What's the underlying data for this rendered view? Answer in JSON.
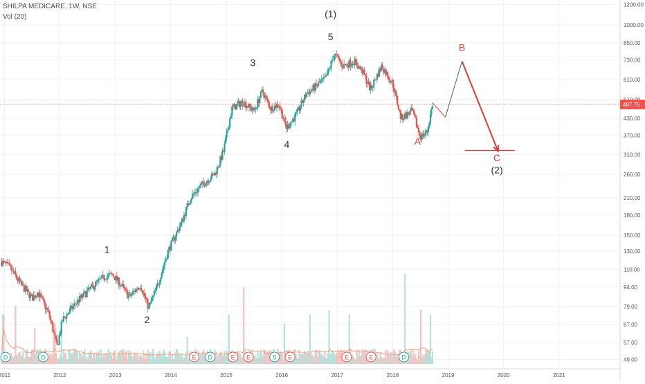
{
  "header": {
    "symbol_line": "SHILPA MEDICARE, 1W, NSE",
    "volume_label": "Vol (20)"
  },
  "price_badge": "487.75",
  "colors": {
    "up": "#26a69a",
    "down": "#ef5350",
    "vol_up": "#b7e1db",
    "vol_down": "#f6c3c2",
    "vol_ma": "#f4a582",
    "annotation_red": "#e53935",
    "annotation_green": "#2e7d32",
    "last_price_line": "#ef5350"
  },
  "chart_data": {
    "type": "candlestick",
    "timeframe": "1W",
    "y_scale": "log",
    "ylim": [
      45,
      1220
    ],
    "xlim": [
      2010.92,
      2022.1
    ],
    "y_ticks": [
      1200,
      1000,
      850,
      730,
      610,
      510,
      430,
      370,
      310,
      260,
      210,
      180,
      150,
      130,
      110,
      94,
      79,
      67,
      57,
      49
    ],
    "y_tick_labels": [
      "1200.00",
      "1000.00",
      "850.00",
      "730.00",
      "610.00",
      "510.00",
      "430.00",
      "370.00",
      "310.00",
      "260.00",
      "210.00",
      "180.00",
      "150.00",
      "130.00",
      "110.00",
      "94.00",
      "79.00",
      "67.00",
      "57.00",
      "49.00"
    ],
    "x_ticks": [
      2011,
      2012,
      2013,
      2014,
      2015,
      2016,
      2017,
      2018,
      2019,
      2020,
      2021
    ],
    "x_tick_labels": [
      "2011",
      "2012",
      "2013",
      "2014",
      "2015",
      "2016",
      "2017",
      "2018",
      "2019",
      "2020",
      "2021"
    ],
    "last_price": 487.75,
    "price_path": [
      {
        "t": 2010.95,
        "p": 118
      },
      {
        "t": 2011.1,
        "p": 112
      },
      {
        "t": 2011.3,
        "p": 96
      },
      {
        "t": 2011.5,
        "p": 85
      },
      {
        "t": 2011.6,
        "p": 90
      },
      {
        "t": 2011.8,
        "p": 74
      },
      {
        "t": 2011.95,
        "p": 55
      },
      {
        "t": 2012.05,
        "p": 70
      },
      {
        "t": 2012.3,
        "p": 82
      },
      {
        "t": 2012.6,
        "p": 95
      },
      {
        "t": 2012.8,
        "p": 103
      },
      {
        "t": 2012.95,
        "p": 105
      },
      {
        "t": 2013.1,
        "p": 96
      },
      {
        "t": 2013.25,
        "p": 86
      },
      {
        "t": 2013.45,
        "p": 96
      },
      {
        "t": 2013.6,
        "p": 78
      },
      {
        "t": 2013.75,
        "p": 94
      },
      {
        "t": 2013.95,
        "p": 130
      },
      {
        "t": 2014.2,
        "p": 170
      },
      {
        "t": 2014.35,
        "p": 210
      },
      {
        "t": 2014.55,
        "p": 235
      },
      {
        "t": 2014.8,
        "p": 262
      },
      {
        "t": 2014.95,
        "p": 320
      },
      {
        "t": 2015.1,
        "p": 470
      },
      {
        "t": 2015.3,
        "p": 500
      },
      {
        "t": 2015.5,
        "p": 460
      },
      {
        "t": 2015.65,
        "p": 550
      },
      {
        "t": 2015.8,
        "p": 470
      },
      {
        "t": 2015.95,
        "p": 490
      },
      {
        "t": 2016.08,
        "p": 395
      },
      {
        "t": 2016.25,
        "p": 440
      },
      {
        "t": 2016.45,
        "p": 540
      },
      {
        "t": 2016.6,
        "p": 570
      },
      {
        "t": 2016.8,
        "p": 620
      },
      {
        "t": 2016.95,
        "p": 770
      },
      {
        "t": 2017.1,
        "p": 690
      },
      {
        "t": 2017.3,
        "p": 720
      },
      {
        "t": 2017.45,
        "p": 660
      },
      {
        "t": 2017.6,
        "p": 560
      },
      {
        "t": 2017.8,
        "p": 690
      },
      {
        "t": 2018.0,
        "p": 590
      },
      {
        "t": 2018.15,
        "p": 430
      },
      {
        "t": 2018.35,
        "p": 460
      },
      {
        "t": 2018.5,
        "p": 365
      },
      {
        "t": 2018.62,
        "p": 380
      },
      {
        "t": 2018.72,
        "p": 490
      }
    ],
    "projection": [
      {
        "t": 2018.72,
        "p": 495
      },
      {
        "t": 2018.95,
        "p": 435
      },
      {
        "t": 2019.25,
        "p": 720
      },
      {
        "t": 2019.9,
        "p": 320
      }
    ],
    "target_line": {
      "t0": 2019.3,
      "t1": 2020.2,
      "p": 322
    },
    "wave_labels": [
      {
        "text": "1",
        "t": 2012.85,
        "p": 128,
        "color": "dark"
      },
      {
        "text": "2",
        "t": 2013.57,
        "p": 68,
        "color": "dark"
      },
      {
        "text": "3",
        "t": 2015.48,
        "p": 690,
        "color": "dark"
      },
      {
        "text": "4",
        "t": 2016.09,
        "p": 330,
        "color": "dark"
      },
      {
        "text": "5",
        "t": 2016.88,
        "p": 870,
        "color": "dark"
      },
      {
        "text": "(1)",
        "t": 2016.88,
        "p": 1070,
        "color": "dark"
      },
      {
        "text": "A",
        "t": 2018.45,
        "p": 340,
        "color": "red"
      },
      {
        "text": "B",
        "t": 2019.25,
        "p": 790,
        "color": "red"
      },
      {
        "text": "C",
        "t": 2019.88,
        "p": 292,
        "color": "red"
      },
      {
        "text": "(2)",
        "t": 2019.88,
        "p": 262,
        "color": "dark"
      }
    ],
    "events": [
      {
        "label": "D",
        "t": 2011.02
      },
      {
        "label": "D",
        "t": 2011.7
      },
      {
        "label": "E",
        "t": 2014.42
      },
      {
        "label": "D",
        "t": 2014.71
      },
      {
        "label": "E",
        "t": 2015.12
      },
      {
        "label": "E",
        "t": 2015.4
      },
      {
        "label": "S",
        "t": 2015.87
      },
      {
        "label": "E",
        "t": 2016.15
      },
      {
        "label": "E",
        "t": 2017.17
      },
      {
        "label": "E",
        "t": 2017.61
      },
      {
        "label": "D",
        "t": 2018.2
      }
    ],
    "volume_spikes": [
      {
        "t": 2010.98,
        "v": 0.55
      },
      {
        "t": 2011.2,
        "v": 0.65
      },
      {
        "t": 2011.55,
        "v": 0.4
      },
      {
        "t": 2011.9,
        "v": 0.45
      },
      {
        "t": 2012.02,
        "v": 0.5
      },
      {
        "t": 2014.3,
        "v": 0.3
      },
      {
        "t": 2015.05,
        "v": 0.55
      },
      {
        "t": 2015.32,
        "v": 0.85
      },
      {
        "t": 2016.05,
        "v": 0.45
      },
      {
        "t": 2016.5,
        "v": 0.55
      },
      {
        "t": 2016.85,
        "v": 0.6
      },
      {
        "t": 2017.22,
        "v": 0.55
      },
      {
        "t": 2018.22,
        "v": 1.0
      },
      {
        "t": 2018.5,
        "v": 0.6
      },
      {
        "t": 2018.68,
        "v": 0.55
      }
    ]
  }
}
